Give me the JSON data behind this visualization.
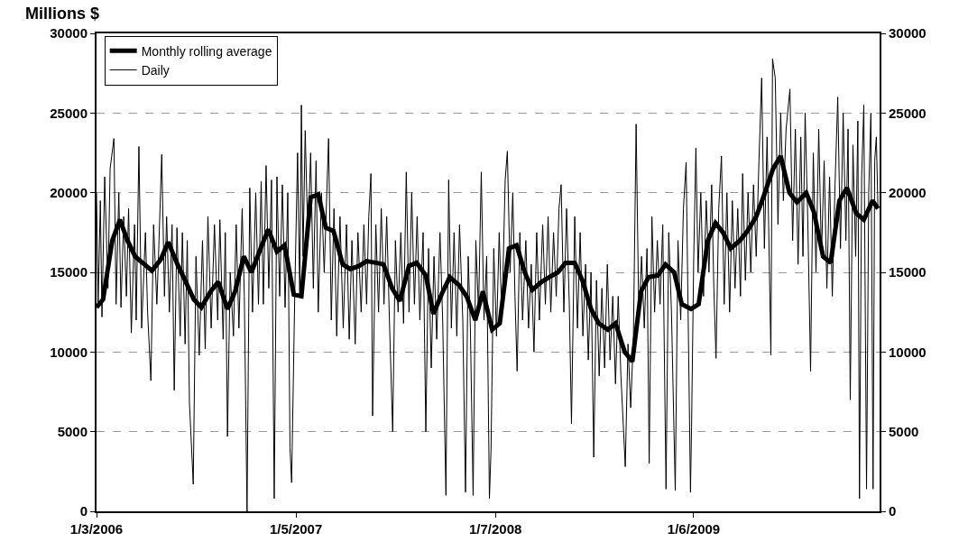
{
  "chart_data": {
    "type": "line",
    "title": "Millions $",
    "xlim": [
      "2006-01-03",
      "2009-12-14"
    ],
    "xticks": [
      {
        "value": "2006-01-03",
        "label": "1/3/2006"
      },
      {
        "value": "2007-01-05",
        "label": "1/5/2007"
      },
      {
        "value": "2008-01-07",
        "label": "1/7/2008"
      },
      {
        "value": "2009-01-06",
        "label": "1/6/2009"
      }
    ],
    "ylim": [
      0,
      30000
    ],
    "yticks": [
      0,
      5000,
      10000,
      15000,
      20000,
      25000,
      30000
    ],
    "y2lim": [
      0,
      30000
    ],
    "y2ticks": [
      0,
      5000,
      10000,
      15000,
      20000,
      25000,
      30000
    ],
    "grid": "y",
    "legend": "top left",
    "line_style": "solid",
    "series": [
      {
        "name": "Monthly rolling average",
        "type": "line",
        "color": "#000000",
        "x": [
          "2006-01-03",
          "2006-01-15",
          "2006-02-01",
          "2006-02-15",
          "2006-03-01",
          "2006-03-15",
          "2006-04-01",
          "2006-04-15",
          "2006-05-01",
          "2006-05-15",
          "2006-06-01",
          "2006-06-15",
          "2006-07-01",
          "2006-07-15",
          "2006-08-01",
          "2006-08-15",
          "2006-09-01",
          "2006-09-15",
          "2006-10-01",
          "2006-10-15",
          "2006-11-01",
          "2006-11-15",
          "2006-12-01",
          "2006-12-15",
          "2007-01-01",
          "2007-01-15",
          "2007-02-01",
          "2007-02-15",
          "2007-03-01",
          "2007-03-15",
          "2007-04-01",
          "2007-04-15",
          "2007-05-01",
          "2007-05-15",
          "2007-06-01",
          "2007-06-15",
          "2007-07-01",
          "2007-07-15",
          "2007-08-01",
          "2007-08-15",
          "2007-09-01",
          "2007-09-15",
          "2007-10-01",
          "2007-10-15",
          "2007-11-01",
          "2007-11-15",
          "2007-12-01",
          "2007-12-15",
          "2008-01-01",
          "2008-01-15",
          "2008-02-01",
          "2008-02-15",
          "2008-03-01",
          "2008-03-15",
          "2008-04-01",
          "2008-04-15",
          "2008-05-01",
          "2008-05-15",
          "2008-06-01",
          "2008-06-15",
          "2008-07-01",
          "2008-07-15",
          "2008-08-01",
          "2008-08-15",
          "2008-09-01",
          "2008-09-15",
          "2008-10-01",
          "2008-10-15",
          "2008-11-01",
          "2008-11-15",
          "2008-12-01",
          "2008-12-15",
          "2009-01-01",
          "2009-01-15",
          "2009-02-01",
          "2009-02-15",
          "2009-03-01",
          "2009-03-15",
          "2009-04-01",
          "2009-04-15",
          "2009-05-01",
          "2009-05-15",
          "2009-06-01",
          "2009-06-15",
          "2009-07-01",
          "2009-07-15",
          "2009-08-01",
          "2009-08-15",
          "2009-09-01",
          "2009-09-15",
          "2009-10-01",
          "2009-10-15",
          "2009-11-01",
          "2009-11-15",
          "2009-12-01",
          "2009-12-11"
        ],
        "values": [
          12800,
          13300,
          17000,
          18300,
          17000,
          16000,
          15500,
          15100,
          15800,
          16900,
          15500,
          14500,
          13300,
          12800,
          13800,
          14400,
          12700,
          13800,
          16000,
          15000,
          16500,
          17700,
          16300,
          16700,
          13600,
          13500,
          19700,
          19900,
          17800,
          17600,
          15500,
          15200,
          15400,
          15700,
          15600,
          15500,
          14000,
          13200,
          15400,
          15600,
          14800,
          12400,
          13700,
          14700,
          14200,
          13500,
          12000,
          13800,
          11400,
          11800,
          16500,
          16700,
          15000,
          13900,
          14400,
          14700,
          15000,
          15600,
          15600,
          14500,
          12700,
          11800,
          11400,
          11800,
          10000,
          9400,
          13800,
          14700,
          14800,
          15500,
          15000,
          13000,
          12700,
          13000,
          17000,
          18100,
          17500,
          16500,
          17000,
          17600,
          18500,
          19800,
          21500,
          22300,
          20000,
          19400,
          20000,
          18800,
          16000,
          15600,
          19500,
          20300,
          18700,
          18300,
          19500,
          19000
        ]
      },
      {
        "name": "Daily",
        "type": "line",
        "color": "#000000",
        "x": [
          "2006-01-03",
          "2006-01-06",
          "2006-01-10",
          "2006-01-13",
          "2006-01-18",
          "2006-01-24",
          "2006-01-28",
          "2006-02-04",
          "2006-02-08",
          "2006-02-13",
          "2006-02-17",
          "2006-02-22",
          "2006-02-27",
          "2006-03-03",
          "2006-03-08",
          "2006-03-14",
          "2006-03-17",
          "2006-03-22",
          "2006-03-27",
          "2006-04-03",
          "2006-04-07",
          "2006-04-13",
          "2006-04-18",
          "2006-04-24",
          "2006-04-28",
          "2006-05-03",
          "2006-05-08",
          "2006-05-12",
          "2006-05-17",
          "2006-05-22",
          "2006-05-26",
          "2006-05-31",
          "2006-06-06",
          "2006-06-10",
          "2006-06-15",
          "2006-06-19",
          "2006-06-23",
          "2006-06-30",
          "2006-07-05",
          "2006-07-11",
          "2006-07-17",
          "2006-07-22",
          "2006-07-27",
          "2006-08-02",
          "2006-08-08",
          "2006-08-14",
          "2006-08-18",
          "2006-08-24",
          "2006-08-28",
          "2006-09-01",
          "2006-09-06",
          "2006-09-12",
          "2006-09-17",
          "2006-09-22",
          "2006-09-28",
          "2006-10-02",
          "2006-10-07",
          "2006-10-12",
          "2006-10-17",
          "2006-10-23",
          "2006-10-28",
          "2006-11-02",
          "2006-11-06",
          "2006-11-11",
          "2006-11-16",
          "2006-11-21",
          "2006-11-26",
          "2006-12-01",
          "2006-12-06",
          "2006-12-11",
          "2006-12-16",
          "2006-12-21",
          "2006-12-25",
          "2006-12-28",
          "2007-01-03",
          "2007-01-08",
          "2007-01-12",
          "2007-01-15",
          "2007-01-18",
          "2007-01-22",
          "2007-01-27",
          "2007-02-01",
          "2007-02-06",
          "2007-02-11",
          "2007-02-15",
          "2007-02-21",
          "2007-02-26",
          "2007-03-06",
          "2007-03-11",
          "2007-03-16",
          "2007-03-21",
          "2007-03-27",
          "2007-04-02",
          "2007-04-08",
          "2007-04-13",
          "2007-04-18",
          "2007-04-24",
          "2007-04-29",
          "2007-05-05",
          "2007-05-10",
          "2007-05-15",
          "2007-05-19",
          "2007-05-23",
          "2007-05-26",
          "2007-06-01",
          "2007-06-06",
          "2007-06-11",
          "2007-06-16",
          "2007-06-21",
          "2007-06-26",
          "2007-07-02",
          "2007-07-07",
          "2007-07-12",
          "2007-07-17",
          "2007-07-22",
          "2007-07-27",
          "2007-08-01",
          "2007-08-06",
          "2007-08-11",
          "2007-08-16",
          "2007-08-21",
          "2007-08-27",
          "2007-09-01",
          "2007-09-06",
          "2007-09-11",
          "2007-09-16",
          "2007-09-21",
          "2007-09-27",
          "2007-10-02",
          "2007-10-08",
          "2007-10-13",
          "2007-10-18",
          "2007-10-23",
          "2007-10-28",
          "2007-11-02",
          "2007-11-08",
          "2007-11-13",
          "2007-11-18",
          "2007-11-22",
          "2007-11-27",
          "2007-12-02",
          "2007-12-07",
          "2007-12-12",
          "2007-12-17",
          "2007-12-22",
          "2007-12-27",
          "2007-12-30",
          "2008-01-04",
          "2008-01-09",
          "2008-01-14",
          "2008-01-19",
          "2008-01-25",
          "2008-01-29",
          "2008-02-03",
          "2008-02-08",
          "2008-02-12",
          "2008-02-16",
          "2008-02-21",
          "2008-02-26",
          "2008-03-03",
          "2008-03-08",
          "2008-03-13",
          "2008-03-18",
          "2008-03-23",
          "2008-03-28",
          "2008-04-03",
          "2008-04-08",
          "2008-04-13",
          "2008-04-18",
          "2008-04-23",
          "2008-04-28",
          "2008-05-03",
          "2008-05-07",
          "2008-05-12",
          "2008-05-17",
          "2008-05-22",
          "2008-05-26",
          "2008-06-01",
          "2008-06-06",
          "2008-06-11",
          "2008-06-16",
          "2008-06-21",
          "2008-06-26",
          "2008-07-01",
          "2008-07-06",
          "2008-07-11",
          "2008-07-16",
          "2008-07-21",
          "2008-07-26",
          "2008-07-31",
          "2008-08-05",
          "2008-08-10",
          "2008-08-15",
          "2008-08-20",
          "2008-08-25",
          "2008-09-02",
          "2008-09-07",
          "2008-09-12",
          "2008-09-17",
          "2008-09-22",
          "2008-09-27",
          "2008-10-02",
          "2008-10-07",
          "2008-10-12",
          "2008-10-16",
          "2008-10-21",
          "2008-10-26",
          "2008-10-31",
          "2008-11-05",
          "2008-11-10",
          "2008-11-16",
          "2008-11-21",
          "2008-11-26",
          "2008-12-03",
          "2008-12-08",
          "2008-12-13",
          "2008-12-18",
          "2008-12-23",
          "2008-12-31",
          "2009-01-02",
          "2009-01-06",
          "2009-01-10",
          "2009-01-14",
          "2009-01-19",
          "2009-01-24",
          "2009-01-29",
          "2009-02-03",
          "2009-02-08",
          "2009-02-12",
          "2009-02-16",
          "2009-02-21",
          "2009-02-26",
          "2009-03-03",
          "2009-03-08",
          "2009-03-13",
          "2009-03-18",
          "2009-03-23",
          "2009-03-28",
          "2009-04-02",
          "2009-04-06",
          "2009-04-11",
          "2009-04-16",
          "2009-04-21",
          "2009-04-26",
          "2009-05-01",
          "2009-05-06",
          "2009-05-11",
          "2009-05-16",
          "2009-05-21",
          "2009-05-28",
          "2009-05-31",
          "2009-06-05",
          "2009-06-10",
          "2009-06-15",
          "2009-06-20",
          "2009-06-25",
          "2009-07-02",
          "2009-07-07",
          "2009-07-12",
          "2009-07-17",
          "2009-07-22",
          "2009-07-26",
          "2009-07-30",
          "2009-08-04",
          "2009-08-09",
          "2009-08-14",
          "2009-08-19",
          "2009-08-24",
          "2009-08-29",
          "2009-09-03",
          "2009-09-08",
          "2009-09-13",
          "2009-09-18",
          "2009-09-23",
          "2009-09-28",
          "2009-10-03",
          "2009-10-08",
          "2009-10-13",
          "2009-10-17",
          "2009-10-21",
          "2009-10-26",
          "2009-10-31",
          "2009-11-04",
          "2009-11-07",
          "2009-11-11",
          "2009-11-15",
          "2009-11-20",
          "2009-11-24",
          "2009-11-28",
          "2009-12-02",
          "2009-12-05",
          "2009-12-08",
          "2009-12-11"
        ],
        "values": [
          20000,
          13000,
          19500,
          12200,
          21000,
          14000,
          21500,
          23400,
          13000,
          20000,
          12800,
          18500,
          13500,
          19000,
          11200,
          18000,
          12000,
          22900,
          11500,
          17500,
          12500,
          8200,
          18000,
          13000,
          17000,
          22400,
          13500,
          18500,
          12500,
          18000,
          7600,
          17800,
          11000,
          17500,
          10500,
          17000,
          6800,
          1700,
          16000,
          9800,
          17000,
          10200,
          18500,
          11500,
          18000,
          12000,
          18300,
          10800,
          17500,
          4700,
          15000,
          11000,
          18000,
          11500,
          19000,
          13500,
          0,
          20300,
          12500,
          20000,
          13000,
          20700,
          13000,
          21700,
          14000,
          20800,
          800,
          21000,
          13500,
          20500,
          12800,
          20000,
          4000,
          1800,
          14000,
          22500,
          13500,
          25500,
          16000,
          23900,
          17000,
          22500,
          14000,
          22000,
          12500,
          20000,
          15000,
          23400,
          12000,
          19000,
          11000,
          18500,
          11500,
          18000,
          10800,
          17000,
          10500,
          17500,
          12500,
          18000,
          13000,
          18500,
          21200,
          6000,
          18000,
          12500,
          19000,
          13000,
          18500,
          12000,
          5000,
          17000,
          12500,
          17500,
          11800,
          21300,
          12500,
          20000,
          13000,
          18500,
          12000,
          17500,
          5000,
          16500,
          9000,
          16000,
          10800,
          17500,
          12000,
          1000,
          20800,
          11500,
          17500,
          11000,
          18000,
          12000,
          1200,
          16000,
          11500,
          1000,
          17000,
          12500,
          21300,
          12000,
          16000,
          800,
          3900,
          16500,
          11000,
          17500,
          12000,
          20800,
          22600,
          15000,
          20000,
          13500,
          8800,
          17500,
          12000,
          17000,
          11500,
          15500,
          10000,
          17500,
          12000,
          18000,
          13000,
          18500,
          12500,
          17500,
          13500,
          19000,
          20500,
          12500,
          19000,
          13000,
          5500,
          18500,
          11500,
          17500,
          11000,
          15500,
          9500,
          15000,
          3400,
          14500,
          8500,
          14000,
          9000,
          15500,
          9500,
          13500,
          8000,
          13500,
          8500,
          2800,
          10500,
          6500,
          11000,
          24300,
          12000,
          16000,
          11500,
          16500,
          3000,
          18500,
          12500,
          17000,
          13000,
          18000,
          1400,
          17500,
          12500,
          1300,
          17000,
          12000,
          19000,
          21900,
          1200,
          5300,
          16000,
          22800,
          15000,
          20000,
          13500,
          19500,
          15000,
          20500,
          14000,
          9600,
          19000,
          22300,
          13000,
          20000,
          12500,
          19500,
          14000,
          19000,
          13500,
          21200,
          14500,
          20000,
          15000,
          20500,
          16000,
          22000,
          27200,
          16500,
          23500,
          9800,
          28400,
          27200,
          18000,
          25000,
          19500,
          24000,
          26500,
          17000,
          24000,
          15500,
          23500,
          16000,
          25000,
          18000,
          8800,
          22500,
          15000,
          24000,
          16000,
          22000,
          14000,
          21000,
          13500,
          20500,
          26000,
          16500,
          25000,
          17000,
          24000,
          7000,
          23000,
          16000,
          24500,
          800,
          21000,
          25500,
          1400,
          20000,
          25000,
          1400,
          22000,
          23500,
          19000
        ]
      }
    ]
  }
}
